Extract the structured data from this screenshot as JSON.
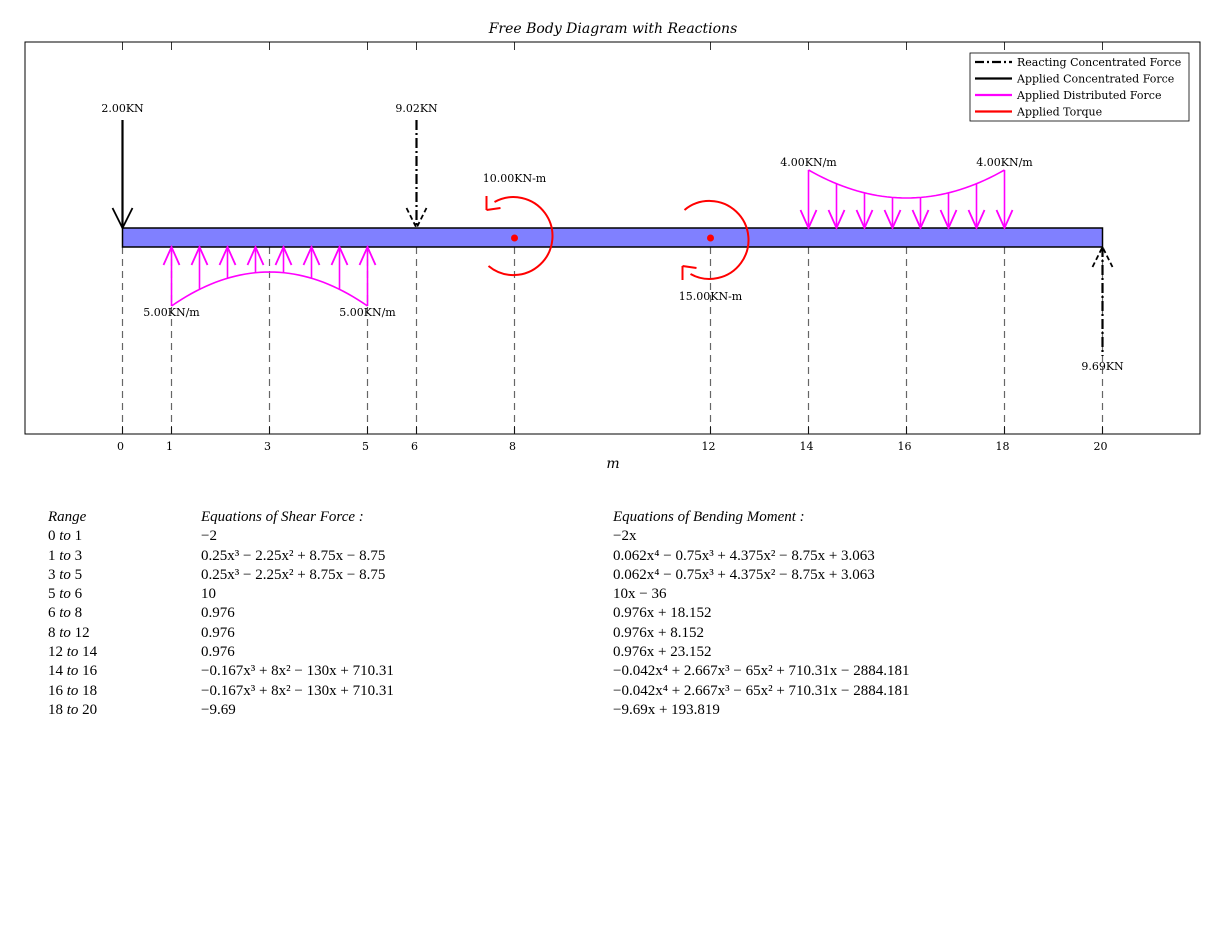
{
  "figure": {
    "title": "Free Body Diagram with Reactions",
    "xlabel": "m",
    "colors": {
      "beam": "#8080ff",
      "distributed": "#ff00ff",
      "torque": "#ff0000",
      "force": "#000000"
    }
  },
  "beam": {
    "start": 0,
    "end": 20
  },
  "xticks": [
    0,
    1,
    3,
    5,
    6,
    8,
    12,
    14,
    16,
    18,
    20
  ],
  "legend": [
    {
      "label": "Reacting Concentrated Force",
      "style": "dashdot",
      "color": "#000000"
    },
    {
      "label": "Applied Concentrated Force",
      "style": "solid",
      "color": "#000000"
    },
    {
      "label": "Applied Distributed Force",
      "style": "solid",
      "color": "#ff00ff"
    },
    {
      "label": "Applied Torque",
      "style": "solid",
      "color": "#ff0000"
    }
  ],
  "concentrated_forces": [
    {
      "x": 0,
      "label": "2.00KN",
      "direction": "down",
      "type": "applied"
    },
    {
      "x": 6,
      "label": "9.02KN",
      "direction": "down",
      "type": "reaction"
    },
    {
      "x": 20,
      "label": "9.69KN",
      "direction": "up",
      "type": "reaction"
    }
  ],
  "distributed_loads": [
    {
      "from": 1,
      "to": 5,
      "direction": "up",
      "labels": [
        "5.00KN/m",
        "5.00KN/m"
      ]
    },
    {
      "from": 14,
      "to": 18,
      "direction": "down",
      "labels": [
        "4.00KN/m",
        "4.00KN/m"
      ]
    }
  ],
  "torques": [
    {
      "x": 8,
      "label": "10.00KN-m",
      "sense": "counterclockwise"
    },
    {
      "x": 12,
      "label": "15.00KN-m",
      "sense": "clockwise"
    }
  ],
  "equations": {
    "headers": {
      "range": "Range",
      "shear": "Equations of Shear Force :",
      "moment": "Equations of Bending Moment :"
    },
    "rows": [
      {
        "from": "0",
        "to": "1",
        "shear": "−2",
        "moment": "−2x"
      },
      {
        "from": "1",
        "to": "3",
        "shear": "0.25x³ − 2.25x² + 8.75x − 8.75",
        "moment": "0.062x⁴ − 0.75x³ + 4.375x² − 8.75x + 3.063"
      },
      {
        "from": "3",
        "to": "5",
        "shear": "0.25x³ − 2.25x² + 8.75x − 8.75",
        "moment": "0.062x⁴ − 0.75x³ + 4.375x² − 8.75x + 3.063"
      },
      {
        "from": "5",
        "to": "6",
        "shear": "10",
        "moment": "10x − 36"
      },
      {
        "from": "6",
        "to": "8",
        "shear": "0.976",
        "moment": "0.976x + 18.152"
      },
      {
        "from": "8",
        "to": "12",
        "shear": "0.976",
        "moment": "0.976x + 8.152"
      },
      {
        "from": "12",
        "to": "14",
        "shear": "0.976",
        "moment": "0.976x + 23.152"
      },
      {
        "from": "14",
        "to": "16",
        "shear": "−0.167x³ + 8x² − 130x + 710.31",
        "moment": "−0.042x⁴ + 2.667x³ − 65x² + 710.31x − 2884.181"
      },
      {
        "from": "16",
        "to": "18",
        "shear": "−0.167x³ + 8x² − 130x + 710.31",
        "moment": "−0.042x⁴ + 2.667x³ − 65x² + 710.31x − 2884.181"
      },
      {
        "from": "18",
        "to": "20",
        "shear": "−9.69",
        "moment": "−9.69x + 193.819"
      }
    ],
    "range_word": "to"
  }
}
